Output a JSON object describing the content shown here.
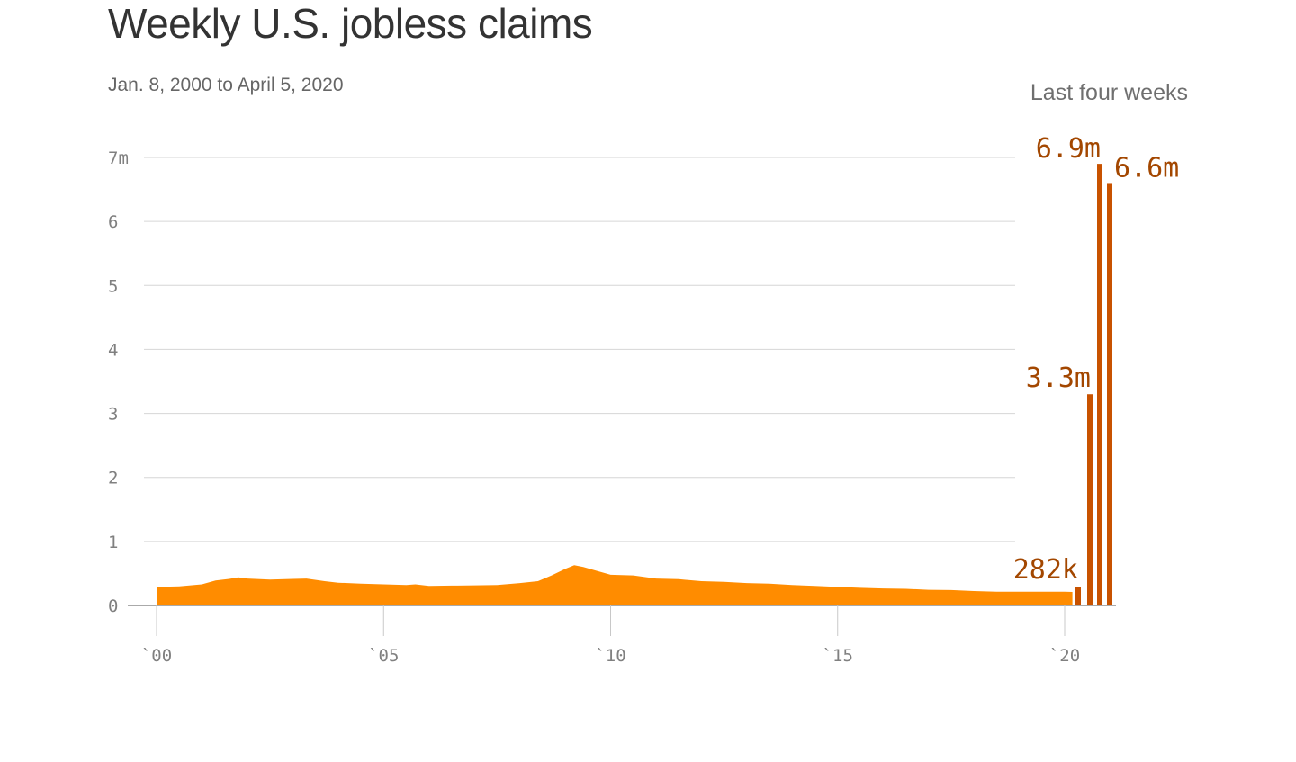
{
  "chart_data": {
    "type": "area",
    "title": "Weekly U.S. jobless claims",
    "subtitle": "Jan. 8, 2000 to April 5, 2020",
    "highlight_label": "Last four weeks",
    "xlabel": "",
    "ylabel": "",
    "ylim": [
      0,
      7000000
    ],
    "y_ticks": [
      {
        "value": 0,
        "label": "0"
      },
      {
        "value": 1000000,
        "label": "1"
      },
      {
        "value": 2000000,
        "label": "2"
      },
      {
        "value": 3000000,
        "label": "3"
      },
      {
        "value": 4000000,
        "label": "4"
      },
      {
        "value": 5000000,
        "label": "5"
      },
      {
        "value": 6000000,
        "label": "6"
      },
      {
        "value": 7000000,
        "label": "7m"
      }
    ],
    "x_ticks": [
      {
        "value": 2000,
        "label": "`00"
      },
      {
        "value": 2005,
        "label": "`05"
      },
      {
        "value": 2010,
        "label": "`10"
      },
      {
        "value": 2015,
        "label": "`15"
      },
      {
        "value": 2020,
        "label": "`20"
      }
    ],
    "grid": true,
    "area_color": "#ff8c00",
    "bar_color": "#c85200",
    "annotation_color": "#a34700",
    "series": [
      {
        "x": [
          2000.0,
          2000.5,
          2001.0,
          2001.3,
          2001.6,
          2001.8,
          2002.0,
          2002.5,
          2003.0,
          2003.3,
          2003.7,
          2004.0,
          2004.5,
          2005.0,
          2005.5,
          2005.7,
          2006.0,
          2006.5,
          2007.0,
          2007.5,
          2008.0,
          2008.4,
          2008.7,
          2009.0,
          2009.2,
          2009.4,
          2009.7,
          2010.0,
          2010.5,
          2011.0,
          2011.5,
          2012.0,
          2012.5,
          2013.0,
          2013.5,
          2014.0,
          2014.5,
          2015.0,
          2015.5,
          2016.0,
          2016.5,
          2017.0,
          2017.5,
          2018.0,
          2018.5,
          2019.0,
          2019.5,
          2020.0,
          2020.17
        ],
        "values": [
          290000,
          300000,
          330000,
          390000,
          415000,
          440000,
          420000,
          405000,
          415000,
          420000,
          380000,
          355000,
          340000,
          330000,
          320000,
          330000,
          305000,
          310000,
          315000,
          320000,
          350000,
          380000,
          470000,
          570000,
          630000,
          600000,
          540000,
          480000,
          470000,
          420000,
          410000,
          380000,
          370000,
          350000,
          340000,
          320000,
          305000,
          290000,
          275000,
          265000,
          260000,
          245000,
          240000,
          225000,
          215000,
          215000,
          215000,
          215000,
          211000
        ]
      }
    ],
    "last_four_weeks": [
      {
        "week": 1,
        "value": 282000,
        "label": "282k"
      },
      {
        "week": 2,
        "value": 3300000,
        "label": "3.3m"
      },
      {
        "week": 3,
        "value": 6900000,
        "label": "6.9m"
      },
      {
        "week": 4,
        "value": 6600000,
        "label": "6.6m"
      }
    ]
  }
}
